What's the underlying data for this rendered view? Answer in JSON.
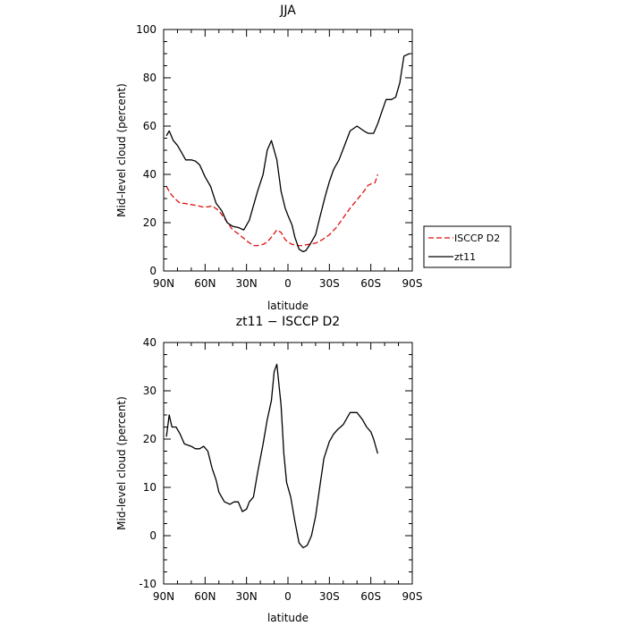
{
  "chart_data": [
    {
      "type": "line",
      "title": "JJA",
      "xlabel": "latitude",
      "ylabel": "Mid-level cloud (percent)",
      "xlim": [
        90,
        -90
      ],
      "ylim": [
        0,
        100
      ],
      "x_ticks": [
        {
          "value": 90,
          "label": "90N"
        },
        {
          "value": 60,
          "label": "60N"
        },
        {
          "value": 30,
          "label": "30N"
        },
        {
          "value": 0,
          "label": "0"
        },
        {
          "value": -30,
          "label": "30S"
        },
        {
          "value": -60,
          "label": "60S"
        },
        {
          "value": -90,
          "label": "90S"
        }
      ],
      "y_ticks": [
        0,
        20,
        40,
        60,
        80,
        100
      ],
      "legend_position": "right",
      "series": [
        {
          "name": "ISCCP D2",
          "color": "#e01010",
          "dash": true,
          "x": [
            88,
            85,
            82,
            78,
            75,
            70,
            65,
            62,
            58,
            55,
            50,
            45,
            40,
            35,
            30,
            25,
            22,
            18,
            15,
            12,
            10,
            8,
            5,
            2,
            0,
            -3,
            -7,
            -10,
            -15,
            -20,
            -25,
            -30,
            -35,
            -40,
            -45,
            -50,
            -55,
            -58,
            -60,
            -63,
            -65
          ],
          "y": [
            35,
            32,
            30,
            28,
            28,
            27.5,
            27,
            26.5,
            26.5,
            27,
            25,
            21,
            17,
            15,
            12.5,
            10.5,
            10.5,
            11,
            12,
            14,
            15.5,
            17,
            16,
            13,
            12,
            11,
            10.5,
            10.5,
            11,
            11.5,
            13,
            15,
            18,
            22,
            26,
            29.5,
            33,
            35.5,
            36,
            36.5,
            40
          ]
        },
        {
          "name": "zt11",
          "color": "#000000",
          "dash": false,
          "x": [
            88,
            86,
            83,
            80,
            77,
            74,
            70,
            67,
            64,
            60,
            56,
            52,
            48,
            44,
            40,
            36,
            32,
            28,
            25,
            22,
            18,
            15,
            12,
            8,
            5,
            2,
            0,
            -3,
            -5,
            -8,
            -11,
            -13,
            -16,
            -20,
            -23,
            -27,
            -30,
            -33,
            -37,
            -41,
            -45,
            -50,
            -55,
            -58,
            -62,
            -65,
            -68,
            -71,
            -75,
            -78,
            -81,
            -84,
            -88
          ],
          "y": [
            56,
            58,
            54,
            52,
            49,
            46,
            46,
            45.5,
            44,
            39,
            35,
            28,
            25,
            20,
            18.5,
            18,
            17,
            21,
            27,
            33,
            40,
            50,
            54,
            46,
            33,
            26,
            23,
            19,
            14,
            9,
            8,
            8.5,
            11,
            15,
            22,
            31,
            37,
            42,
            46,
            52,
            58,
            60,
            58,
            57,
            57,
            61,
            66,
            71,
            71,
            72,
            78,
            89,
            90
          ]
        }
      ]
    },
    {
      "type": "line",
      "title": "zt11 − ISCCP D2",
      "xlabel": "latitude",
      "ylabel": "Mid-level cloud (percent)",
      "xlim": [
        90,
        -90
      ],
      "ylim": [
        -10,
        40
      ],
      "x_ticks": [
        {
          "value": 90,
          "label": "90N"
        },
        {
          "value": 60,
          "label": "60N"
        },
        {
          "value": 30,
          "label": "30N"
        },
        {
          "value": 0,
          "label": "0"
        },
        {
          "value": -30,
          "label": "30S"
        },
        {
          "value": -60,
          "label": "60S"
        },
        {
          "value": -90,
          "label": "90S"
        }
      ],
      "y_ticks": [
        -10,
        0,
        10,
        20,
        30,
        40
      ],
      "series": [
        {
          "color": "#000000",
          "dash": false,
          "x": [
            88,
            86,
            84,
            81,
            78,
            75,
            70,
            67,
            64,
            61,
            58,
            55,
            52,
            50,
            46,
            42,
            39,
            36,
            33,
            30,
            28,
            25,
            22,
            18,
            15,
            12,
            10,
            8,
            5,
            3,
            1,
            -2,
            -5,
            -8,
            -11,
            -14,
            -17,
            -20,
            -23,
            -26,
            -30,
            -33,
            -36,
            -40,
            -45,
            -50,
            -54,
            -57,
            -60,
            -62,
            -65
          ],
          "y": [
            20.5,
            25,
            22.5,
            22.5,
            21,
            19,
            18.5,
            18,
            18,
            18.5,
            17.5,
            14,
            11.5,
            9,
            7,
            6.5,
            7,
            7,
            5,
            5.5,
            7,
            8,
            13,
            19,
            24,
            28,
            34,
            35.5,
            27,
            17,
            11,
            8,
            3,
            -1.5,
            -2.5,
            -2,
            0,
            4,
            10,
            16,
            19.5,
            21,
            22,
            23,
            25.5,
            25.5,
            24,
            22.5,
            21.5,
            20,
            17
          ]
        }
      ]
    }
  ]
}
